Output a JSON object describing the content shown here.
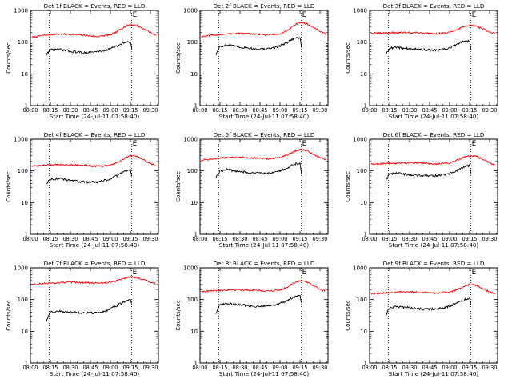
{
  "figure": {
    "xlabel": "Start Time (24-Jul-11 07:58:40)",
    "ylabel": "Counts/sec",
    "x_ticks": [
      "08:00",
      "08:15",
      "08:30",
      "08:45",
      "09:00",
      "09:15",
      "09:30"
    ],
    "y_ticks": [
      "1",
      "10",
      "100",
      "1000"
    ],
    "colors": {
      "events": "#000000",
      "lld": "#ff0000",
      "axes": "#000000"
    }
  },
  "chart_data": [
    {
      "type": "line",
      "title": "Det 1f BLACK = Events, RED = LLD",
      "xlim": [
        "08:00",
        "09:36"
      ],
      "ylim": [
        1,
        1000
      ],
      "yscale": "log",
      "vlines": [
        "08:14",
        "09:16"
      ],
      "marker": {
        "label": "E",
        "x": "09:16"
      },
      "events_range": [
        "08:12",
        "09:16"
      ],
      "series": [
        {
          "color": "#ff0000",
          "x": [
            "08:01",
            "08:10",
            "08:20",
            "08:30",
            "08:40",
            "08:50",
            "09:00",
            "09:05",
            "09:10",
            "09:15",
            "09:20",
            "09:25",
            "09:30",
            "09:34"
          ],
          "values": [
            140,
            165,
            180,
            175,
            165,
            150,
            170,
            210,
            300,
            360,
            330,
            260,
            200,
            165
          ]
        },
        {
          "color": "#000000",
          "x": [
            "08:12",
            "08:15",
            "08:20",
            "08:30",
            "08:40",
            "08:50",
            "08:58",
            "09:05",
            "09:10",
            "09:15",
            "09:16"
          ],
          "values": [
            40,
            58,
            60,
            52,
            46,
            50,
            58,
            75,
            95,
            100,
            60
          ]
        }
      ]
    },
    {
      "type": "line",
      "title": "Det 2f BLACK = Events, RED = LLD",
      "xlim": [
        "08:00",
        "09:36"
      ],
      "ylim": [
        1,
        1000
      ],
      "yscale": "log",
      "vlines": [
        "08:14",
        "09:16"
      ],
      "marker": {
        "label": "E",
        "x": "09:16"
      },
      "events_range": [
        "08:12",
        "09:16"
      ],
      "series": [
        {
          "color": "#ff0000",
          "x": [
            "08:01",
            "08:10",
            "08:20",
            "08:30",
            "08:40",
            "08:50",
            "09:00",
            "09:05",
            "09:10",
            "09:15",
            "09:20",
            "09:25",
            "09:30",
            "09:34"
          ],
          "values": [
            150,
            165,
            180,
            190,
            180,
            170,
            180,
            220,
            320,
            420,
            380,
            290,
            220,
            180
          ]
        },
        {
          "color": "#000000",
          "x": [
            "08:12",
            "08:15",
            "08:20",
            "08:30",
            "08:40",
            "08:50",
            "08:58",
            "09:05",
            "09:10",
            "09:15",
            "09:16"
          ],
          "values": [
            40,
            75,
            80,
            70,
            62,
            60,
            70,
            95,
            130,
            140,
            70
          ]
        }
      ]
    },
    {
      "type": "line",
      "title": "Det 3f BLACK = Events, RED = LLD",
      "xlim": [
        "08:00",
        "09:36"
      ],
      "ylim": [
        1,
        1000
      ],
      "yscale": "log",
      "vlines": [
        "08:14",
        "09:16"
      ],
      "marker": {
        "label": "E",
        "x": "09:16"
      },
      "events_range": [
        "08:12",
        "09:16"
      ],
      "series": [
        {
          "color": "#ff0000",
          "x": [
            "08:01",
            "08:10",
            "08:20",
            "08:30",
            "08:40",
            "08:50",
            "09:00",
            "09:05",
            "09:10",
            "09:15",
            "09:20",
            "09:25",
            "09:30",
            "09:34"
          ],
          "values": [
            190,
            195,
            200,
            200,
            195,
            185,
            200,
            240,
            300,
            340,
            320,
            260,
            210,
            190
          ]
        },
        {
          "color": "#000000",
          "x": [
            "08:12",
            "08:15",
            "08:20",
            "08:30",
            "08:40",
            "08:50",
            "08:58",
            "09:05",
            "09:10",
            "09:15",
            "09:16"
          ],
          "values": [
            40,
            65,
            68,
            62,
            58,
            55,
            62,
            80,
            105,
            110,
            60
          ]
        }
      ]
    },
    {
      "type": "line",
      "title": "Det 4f BLACK = Events, RED = LLD",
      "xlim": [
        "08:00",
        "09:36"
      ],
      "ylim": [
        1,
        1000
      ],
      "yscale": "log",
      "vlines": [
        "08:14",
        "09:16"
      ],
      "marker": {
        "label": "E",
        "x": "09:16"
      },
      "events_range": [
        "08:12",
        "09:16"
      ],
      "series": [
        {
          "color": "#ff0000",
          "x": [
            "08:01",
            "08:10",
            "08:20",
            "08:30",
            "08:40",
            "08:50",
            "09:00",
            "09:05",
            "09:10",
            "09:15",
            "09:20",
            "09:25",
            "09:30",
            "09:34"
          ],
          "values": [
            140,
            150,
            160,
            155,
            150,
            140,
            150,
            180,
            240,
            300,
            280,
            220,
            170,
            150
          ]
        },
        {
          "color": "#000000",
          "x": [
            "08:12",
            "08:15",
            "08:20",
            "08:30",
            "08:40",
            "08:50",
            "08:58",
            "09:05",
            "09:10",
            "09:15",
            "09:16"
          ],
          "values": [
            40,
            55,
            58,
            50,
            45,
            45,
            52,
            70,
            95,
            110,
            70
          ]
        }
      ]
    },
    {
      "type": "line",
      "title": "Det 5f BLACK = Events, RED = LLD",
      "xlim": [
        "08:00",
        "09:36"
      ],
      "ylim": [
        1,
        1000
      ],
      "yscale": "log",
      "vlines": [
        "08:14",
        "09:16"
      ],
      "marker": {
        "label": "E",
        "x": "09:16"
      },
      "events_range": [
        "08:12",
        "09:16"
      ],
      "series": [
        {
          "color": "#ff0000",
          "x": [
            "08:01",
            "08:10",
            "08:20",
            "08:30",
            "08:40",
            "08:50",
            "09:00",
            "09:05",
            "09:10",
            "09:15",
            "09:20",
            "09:25",
            "09:30",
            "09:34"
          ],
          "values": [
            220,
            240,
            260,
            270,
            255,
            240,
            260,
            310,
            400,
            480,
            430,
            330,
            260,
            230
          ]
        },
        {
          "color": "#000000",
          "x": [
            "08:12",
            "08:15",
            "08:20",
            "08:30",
            "08:40",
            "08:50",
            "08:58",
            "09:05",
            "09:10",
            "09:15",
            "09:16"
          ],
          "values": [
            60,
            100,
            110,
            95,
            85,
            85,
            95,
            120,
            160,
            180,
            90
          ]
        }
      ]
    },
    {
      "type": "line",
      "title": "Det 6f BLACK = Events, RED = LLD",
      "xlim": [
        "08:00",
        "09:36"
      ],
      "ylim": [
        1,
        1000
      ],
      "yscale": "log",
      "vlines": [
        "08:14",
        "09:16"
      ],
      "marker": {
        "label": "E",
        "x": "09:16"
      },
      "events_range": [
        "08:12",
        "09:16"
      ],
      "series": [
        {
          "color": "#ff0000",
          "x": [
            "08:01",
            "08:10",
            "08:20",
            "08:30",
            "08:40",
            "08:50",
            "09:00",
            "09:05",
            "09:10",
            "09:15",
            "09:20",
            "09:25",
            "09:30",
            "09:34"
          ],
          "values": [
            160,
            170,
            175,
            180,
            175,
            165,
            175,
            210,
            260,
            310,
            290,
            230,
            180,
            160
          ]
        },
        {
          "color": "#000000",
          "x": [
            "08:12",
            "08:15",
            "08:20",
            "08:30",
            "08:40",
            "08:50",
            "08:58",
            "09:05",
            "09:10",
            "09:15",
            "09:16"
          ],
          "values": [
            45,
            80,
            85,
            75,
            70,
            70,
            78,
            100,
            130,
            150,
            80
          ]
        }
      ]
    },
    {
      "type": "line",
      "title": "Det 7f BLACK = Events, RED = LLD",
      "xlim": [
        "08:00",
        "09:36"
      ],
      "ylim": [
        1,
        1000
      ],
      "yscale": "log",
      "vlines": [
        "08:14",
        "09:16"
      ],
      "marker": {
        "label": "E",
        "x": "09:16"
      },
      "events_range": [
        "08:12",
        "09:16"
      ],
      "series": [
        {
          "color": "#ff0000",
          "x": [
            "08:01",
            "08:10",
            "08:20",
            "08:30",
            "08:40",
            "08:50",
            "09:00",
            "09:05",
            "09:10",
            "09:15",
            "09:20",
            "09:25",
            "09:30",
            "09:34"
          ],
          "values": [
            300,
            320,
            340,
            350,
            340,
            330,
            350,
            400,
            470,
            520,
            500,
            420,
            360,
            320
          ]
        },
        {
          "color": "#000000",
          "x": [
            "08:12",
            "08:15",
            "08:20",
            "08:30",
            "08:40",
            "08:50",
            "08:58",
            "09:05",
            "09:10",
            "09:15",
            "09:16"
          ],
          "values": [
            20,
            40,
            42,
            40,
            38,
            38,
            45,
            65,
            85,
            100,
            70
          ]
        }
      ]
    },
    {
      "type": "line",
      "title": "Det 8f BLACK = Events, RED = LLD",
      "xlim": [
        "08:00",
        "09:36"
      ],
      "ylim": [
        1,
        1000
      ],
      "yscale": "log",
      "vlines": [
        "08:14",
        "09:16"
      ],
      "marker": {
        "label": "E",
        "x": "09:16"
      },
      "events_range": [
        "08:12",
        "09:16"
      ],
      "series": [
        {
          "color": "#ff0000",
          "x": [
            "08:01",
            "08:10",
            "08:20",
            "08:30",
            "08:40",
            "08:50",
            "09:00",
            "09:05",
            "09:10",
            "09:15",
            "09:20",
            "09:25",
            "09:30",
            "09:34"
          ],
          "values": [
            180,
            190,
            200,
            205,
            195,
            185,
            200,
            240,
            330,
            400,
            360,
            270,
            210,
            185
          ]
        },
        {
          "color": "#000000",
          "x": [
            "08:12",
            "08:15",
            "08:20",
            "08:30",
            "08:40",
            "08:50",
            "08:58",
            "09:05",
            "09:10",
            "09:15",
            "09:16"
          ],
          "values": [
            35,
            70,
            75,
            68,
            62,
            62,
            70,
            90,
            120,
            135,
            75
          ]
        }
      ]
    },
    {
      "type": "line",
      "title": "Det 9f BLACK = Events, RED = LLD",
      "xlim": [
        "08:00",
        "09:36"
      ],
      "ylim": [
        1,
        1000
      ],
      "yscale": "log",
      "vlines": [
        "08:14",
        "09:16"
      ],
      "marker": {
        "label": "E",
        "x": "09:16"
      },
      "events_range": [
        "08:12",
        "09:16"
      ],
      "series": [
        {
          "color": "#ff0000",
          "x": [
            "08:01",
            "08:10",
            "08:20",
            "08:30",
            "08:40",
            "08:50",
            "09:00",
            "09:05",
            "09:10",
            "09:15",
            "09:20",
            "09:25",
            "09:30",
            "09:34"
          ],
          "values": [
            150,
            160,
            170,
            175,
            170,
            160,
            170,
            200,
            250,
            300,
            280,
            220,
            175,
            155
          ]
        },
        {
          "color": "#000000",
          "x": [
            "08:12",
            "08:15",
            "08:20",
            "08:30",
            "08:40",
            "08:50",
            "08:58",
            "09:05",
            "09:10",
            "09:15",
            "09:16"
          ],
          "values": [
            30,
            55,
            60,
            55,
            50,
            50,
            58,
            75,
            95,
            110,
            65
          ]
        }
      ]
    }
  ]
}
